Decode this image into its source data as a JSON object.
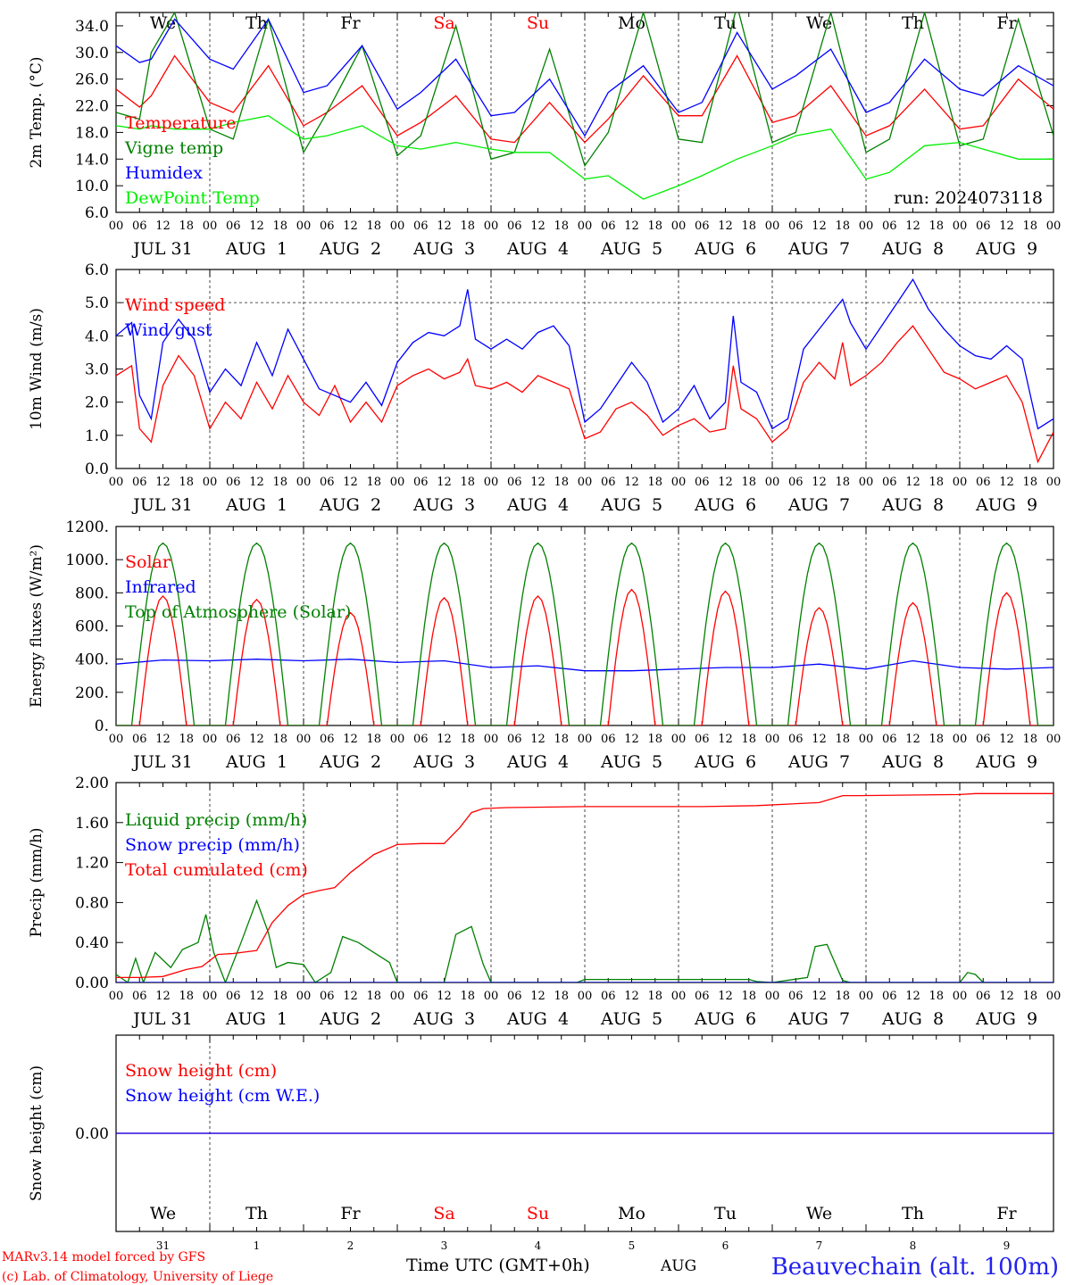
{
  "run_label": "run: 2024073118",
  "footer": {
    "model": "MARv3.14 model forced by GFS",
    "lab": "(c) Lab. of Climatology, University of Liege",
    "time_label": "Time UTC (GMT+0h)",
    "month_label": "AUG",
    "station": "Beauvechain (alt. 100m)"
  },
  "weekdays": [
    "We",
    "Th",
    "Fr",
    "Sa",
    "Su",
    "Mo",
    "Tu",
    "We",
    "Th",
    "Fr"
  ],
  "weekday_colors": [
    "#000000",
    "#000000",
    "#000000",
    "#ff0000",
    "#ff0000",
    "#000000",
    "#000000",
    "#000000",
    "#000000",
    "#000000"
  ],
  "date_labels": [
    "JUL 31",
    "AUG  1",
    "AUG  2",
    "AUG  3",
    "AUG  4",
    "AUG  5",
    "AUG  6",
    "AUG  7",
    "AUG  8",
    "AUG  9"
  ],
  "day_numbers": [
    "31",
    "1",
    "2",
    "3",
    "4",
    "5",
    "6",
    "7",
    "8",
    "9"
  ],
  "hour_ticks": [
    "00",
    "06",
    "12",
    "18"
  ],
  "chart_data": [
    {
      "type": "line",
      "ylabel": "2m Temp. (°C)",
      "ylim": [
        6.0,
        36.0
      ],
      "yticks": [
        "6.0",
        "10.0",
        "14.0",
        "18.0",
        "22.0",
        "26.0",
        "30.0",
        "34.0"
      ],
      "ytick_values": [
        6,
        10,
        14,
        18,
        22,
        26,
        30,
        34
      ],
      "x_unit": "hours since 2024-07-31 00 UTC",
      "xlim": [
        0,
        240
      ],
      "legend_placement": "left",
      "series": [
        {
          "name": "Temperature",
          "color": "#ff0000",
          "x": [
            0,
            6,
            9,
            15,
            24,
            30,
            39,
            48,
            54,
            63,
            72,
            78,
            87,
            96,
            102,
            111,
            120,
            126,
            135,
            144,
            150,
            159,
            168,
            174,
            183,
            192,
            198,
            207,
            216,
            222,
            231,
            240
          ],
          "y": [
            24.5,
            21.8,
            23.5,
            29.5,
            22.5,
            21.0,
            28.0,
            19.0,
            21.0,
            25.0,
            17.5,
            19.5,
            23.5,
            17.0,
            16.5,
            22.5,
            16.5,
            20.0,
            26.5,
            20.5,
            20.5,
            29.5,
            19.5,
            20.5,
            25.0,
            17.5,
            19.0,
            24.5,
            18.5,
            19.0,
            26.0,
            21.5
          ]
        },
        {
          "name": "Vigne temp",
          "color": "#008000",
          "x": [
            0,
            6,
            9,
            15,
            24,
            30,
            39,
            48,
            54,
            63,
            72,
            78,
            87,
            96,
            102,
            111,
            120,
            126,
            135,
            144,
            150,
            159,
            168,
            174,
            183,
            192,
            198,
            207,
            216,
            222,
            231,
            240
          ],
          "y": [
            21.0,
            20.0,
            30.0,
            36.0,
            18.5,
            17.0,
            35.0,
            15.0,
            21.0,
            31.0,
            14.5,
            17.5,
            34.0,
            14.0,
            15.0,
            30.5,
            13.0,
            18.0,
            36.0,
            17.0,
            16.5,
            37.0,
            16.5,
            18.0,
            36.0,
            15.0,
            17.0,
            36.0,
            16.0,
            17.0,
            35.0,
            17.5
          ]
        },
        {
          "name": "Humidex",
          "color": "#0000ff",
          "x": [
            0,
            6,
            9,
            15,
            24,
            30,
            39,
            48,
            54,
            63,
            72,
            78,
            87,
            96,
            102,
            111,
            120,
            126,
            135,
            144,
            150,
            159,
            168,
            174,
            183,
            192,
            198,
            207,
            216,
            222,
            231,
            240
          ],
          "y": [
            31.0,
            28.5,
            29.0,
            35.0,
            29.0,
            27.5,
            35.0,
            24.0,
            25.0,
            31.0,
            21.5,
            24.0,
            29.0,
            20.5,
            21.0,
            26.0,
            17.5,
            24.0,
            28.0,
            21.0,
            22.5,
            33.0,
            24.5,
            26.5,
            30.5,
            21.0,
            22.5,
            29.0,
            24.5,
            23.5,
            28.0,
            25.0
          ]
        },
        {
          "name": "DewPoint Temp",
          "color": "#00ee00",
          "x": [
            0,
            6,
            9,
            15,
            24,
            30,
            39,
            48,
            54,
            63,
            72,
            78,
            87,
            96,
            102,
            111,
            120,
            126,
            135,
            144,
            150,
            159,
            168,
            174,
            183,
            192,
            198,
            207,
            216,
            222,
            231,
            240
          ],
          "y": [
            19.0,
            18.5,
            19.0,
            18.5,
            18.5,
            19.5,
            20.5,
            17.0,
            17.5,
            19.0,
            16.0,
            15.5,
            16.5,
            15.5,
            15.0,
            15.0,
            11.0,
            11.5,
            8.0,
            10.0,
            11.5,
            14.0,
            16.0,
            17.5,
            18.5,
            11.0,
            12.0,
            16.0,
            16.5,
            15.5,
            14.0,
            14.0
          ]
        }
      ]
    },
    {
      "type": "line",
      "ylabel": "10m Wind (m/s)",
      "ylim": [
        0.0,
        6.0
      ],
      "yticks": [
        "0.0",
        "1.0",
        "2.0",
        "3.0",
        "4.0",
        "5.0",
        "6.0"
      ],
      "ytick_values": [
        0,
        1,
        2,
        3,
        4,
        5,
        6
      ],
      "reference_line": 5.0,
      "xlim": [
        0,
        240
      ],
      "series": [
        {
          "name": "Wind speed",
          "color": "#ff0000",
          "x": [
            0,
            4,
            6,
            9,
            12,
            16,
            20,
            24,
            28,
            32,
            36,
            40,
            44,
            48,
            52,
            56,
            60,
            64,
            68,
            72,
            76,
            80,
            84,
            88,
            90,
            92,
            96,
            100,
            104,
            108,
            112,
            116,
            120,
            124,
            128,
            132,
            136,
            140,
            144,
            148,
            152,
            156,
            158,
            160,
            164,
            168,
            172,
            176,
            180,
            184,
            186,
            188,
            192,
            196,
            200,
            204,
            208,
            212,
            216,
            220,
            224,
            228,
            232,
            236,
            240
          ],
          "y": [
            2.8,
            3.1,
            1.2,
            0.8,
            2.5,
            3.4,
            2.8,
            1.2,
            2.0,
            1.5,
            2.6,
            1.8,
            2.8,
            2.0,
            1.6,
            2.5,
            1.4,
            2.0,
            1.4,
            2.5,
            2.8,
            3.0,
            2.7,
            2.9,
            3.3,
            2.5,
            2.4,
            2.6,
            2.3,
            2.8,
            2.6,
            2.4,
            0.9,
            1.1,
            1.8,
            2.0,
            1.6,
            1.0,
            1.3,
            1.5,
            1.1,
            1.2,
            3.1,
            1.8,
            1.5,
            0.8,
            1.2,
            2.6,
            3.2,
            2.7,
            3.8,
            2.5,
            2.8,
            3.2,
            3.8,
            4.3,
            3.6,
            2.9,
            2.7,
            2.4,
            2.6,
            2.8,
            2.0,
            0.2,
            1.1
          ]
        },
        {
          "name": "Wind gust",
          "color": "#0000ff",
          "x": [
            0,
            4,
            6,
            9,
            12,
            16,
            20,
            24,
            28,
            32,
            36,
            40,
            44,
            48,
            52,
            56,
            60,
            64,
            68,
            72,
            76,
            80,
            84,
            88,
            90,
            92,
            96,
            100,
            104,
            108,
            112,
            116,
            120,
            124,
            128,
            132,
            136,
            140,
            144,
            148,
            152,
            156,
            158,
            160,
            164,
            168,
            172,
            176,
            180,
            184,
            186,
            188,
            192,
            196,
            200,
            204,
            208,
            212,
            216,
            220,
            224,
            228,
            232,
            236,
            240
          ],
          "y": [
            4.0,
            4.4,
            2.2,
            1.5,
            3.8,
            4.5,
            3.9,
            2.3,
            3.0,
            2.5,
            3.8,
            2.8,
            4.2,
            3.3,
            2.4,
            2.2,
            2.0,
            2.6,
            1.9,
            3.2,
            3.8,
            4.1,
            4.0,
            4.3,
            5.4,
            3.9,
            3.6,
            3.9,
            3.6,
            4.1,
            4.3,
            3.7,
            1.4,
            1.8,
            2.5,
            3.2,
            2.6,
            1.4,
            1.8,
            2.5,
            1.5,
            2.0,
            4.6,
            2.6,
            2.3,
            1.2,
            1.5,
            3.6,
            4.2,
            4.8,
            5.1,
            4.4,
            3.6,
            4.3,
            5.0,
            5.7,
            4.8,
            4.2,
            3.7,
            3.4,
            3.3,
            3.7,
            3.3,
            1.2,
            1.5
          ]
        }
      ]
    },
    {
      "type": "line",
      "ylabel": "Energy fluxes (W/m²)",
      "ylim": [
        0,
        1200
      ],
      "yticks": [
        "0.",
        "200.",
        "400.",
        "600.",
        "800.",
        "1000.",
        "1200."
      ],
      "ytick_values": [
        0,
        200,
        400,
        600,
        800,
        1000,
        1200
      ],
      "xlim": [
        0,
        240
      ],
      "series": [
        {
          "name": "Solar",
          "color": "#ff0000",
          "peaks": [
            780,
            760,
            680,
            770,
            780,
            820,
            810,
            710,
            740,
            800
          ]
        },
        {
          "name": "Infrared",
          "color": "#0000ff",
          "x": [
            0,
            12,
            24,
            36,
            48,
            60,
            72,
            84,
            96,
            108,
            120,
            132,
            144,
            156,
            168,
            180,
            192,
            204,
            216,
            228,
            240
          ],
          "y": [
            370,
            395,
            390,
            400,
            390,
            400,
            380,
            390,
            350,
            360,
            330,
            330,
            340,
            350,
            350,
            370,
            340,
            390,
            350,
            340,
            350
          ]
        },
        {
          "name": "Top of Atmosphere (Solar)",
          "color": "#008000",
          "peak": 1100
        }
      ]
    },
    {
      "type": "line",
      "ylabel": "Precip (mm/h)",
      "ylim": [
        0.0,
        2.0
      ],
      "yticks": [
        "0.00",
        "0.40",
        "0.80",
        "1.20",
        "1.60",
        "2.00"
      ],
      "ytick_values": [
        0,
        0.4,
        0.8,
        1.2,
        1.6,
        2.0
      ],
      "xlim": [
        0,
        240
      ],
      "series": [
        {
          "name": "Liquid precip (mm/h)",
          "color": "#008000",
          "x": [
            0,
            3,
            5,
            7,
            10,
            14,
            17,
            21,
            23,
            25,
            28,
            32,
            36,
            39,
            41,
            44,
            48,
            51,
            55,
            58,
            62,
            66,
            70,
            72,
            76,
            84,
            87,
            91,
            94,
            96,
            118,
            120,
            162,
            164,
            168,
            177,
            179,
            182,
            186,
            188,
            216,
            218,
            220,
            222,
            240
          ],
          "y": [
            0.08,
            0.0,
            0.24,
            0.0,
            0.3,
            0.15,
            0.33,
            0.4,
            0.68,
            0.3,
            0.0,
            0.4,
            0.82,
            0.5,
            0.15,
            0.2,
            0.18,
            0.0,
            0.1,
            0.46,
            0.4,
            0.3,
            0.2,
            0.0,
            0.0,
            0.0,
            0.48,
            0.56,
            0.18,
            0.0,
            0.0,
            0.03,
            0.03,
            0.01,
            0.0,
            0.05,
            0.36,
            0.38,
            0.02,
            0.0,
            0.0,
            0.1,
            0.08,
            0.0,
            0.0
          ]
        },
        {
          "name": "Snow precip (mm/h)",
          "color": "#0000ff",
          "x": [
            0,
            240
          ],
          "y": [
            0,
            0
          ]
        },
        {
          "name": "Total cumulated (cm)",
          "color": "#ff0000",
          "x": [
            0,
            6,
            12,
            18,
            22,
            26,
            30,
            36,
            40,
            44,
            48,
            52,
            56,
            60,
            66,
            72,
            78,
            84,
            88,
            91,
            94,
            100,
            120,
            150,
            164,
            180,
            186,
            190,
            216,
            220,
            240
          ],
          "y": [
            0.05,
            0.05,
            0.06,
            0.13,
            0.16,
            0.28,
            0.29,
            0.32,
            0.6,
            0.77,
            0.88,
            0.92,
            0.95,
            1.1,
            1.28,
            1.38,
            1.39,
            1.39,
            1.55,
            1.7,
            1.74,
            1.75,
            1.76,
            1.76,
            1.77,
            1.8,
            1.87,
            1.87,
            1.88,
            1.89,
            1.89
          ]
        }
      ]
    },
    {
      "type": "line",
      "ylabel": "Snow height (cm)",
      "ylim": [
        -1.0,
        1.0
      ],
      "yticks": [
        "0.00"
      ],
      "ytick_values": [
        0
      ],
      "xlim": [
        0,
        240
      ],
      "series": [
        {
          "name": "Snow height (cm)",
          "color": "#ff0000",
          "x": [
            0,
            240
          ],
          "y": [
            0,
            0
          ]
        },
        {
          "name": "Snow height (cm W.E.)",
          "color": "#0000ff",
          "x": [
            0,
            240
          ],
          "y": [
            0,
            0
          ]
        }
      ]
    }
  ]
}
